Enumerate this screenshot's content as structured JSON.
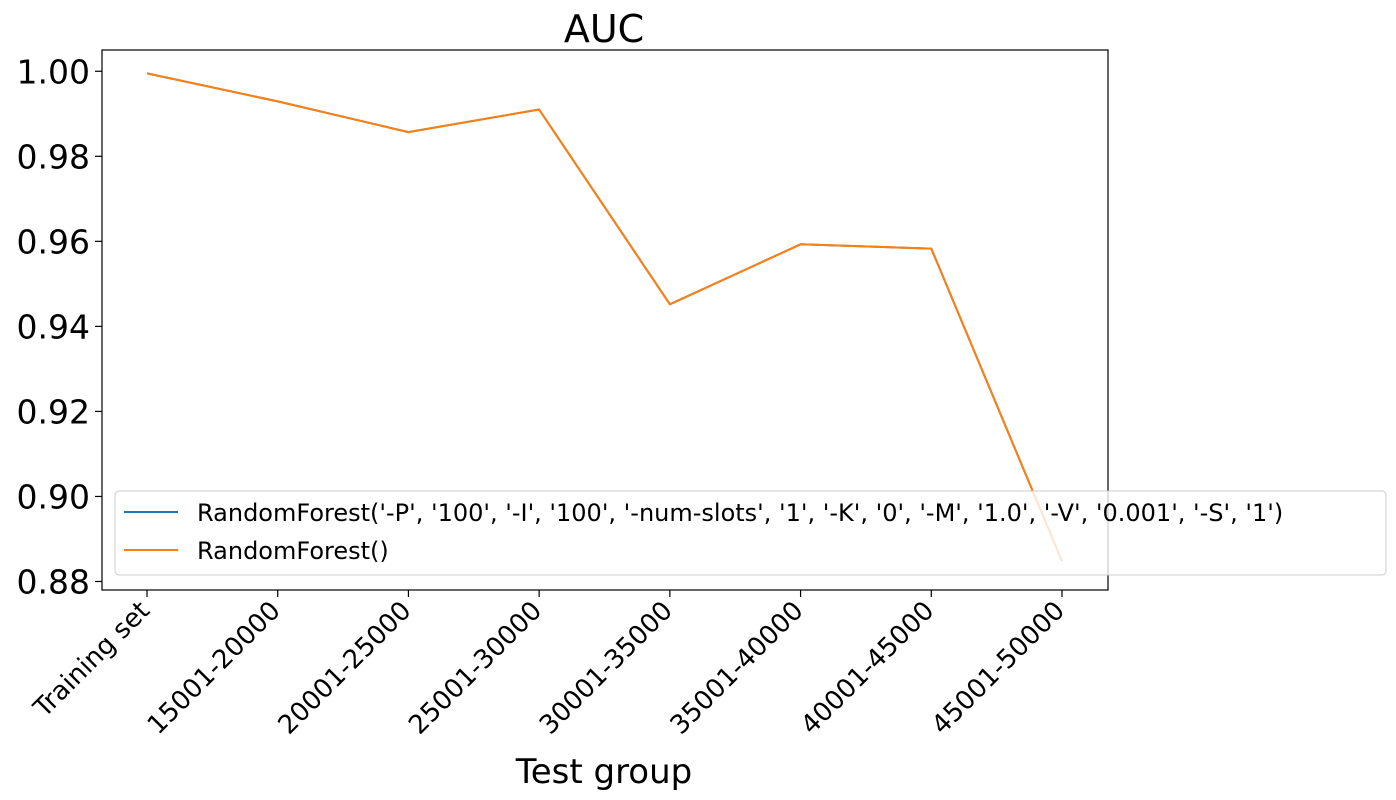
{
  "chart_data": {
    "type": "line",
    "title": "AUC",
    "xlabel": "Test group",
    "ylabel": "",
    "categories": [
      "Training set",
      "15001-20000",
      "20001-25000",
      "25001-30000",
      "30001-35000",
      "35001-40000",
      "40001-45000",
      "45001-50000"
    ],
    "ylim": [
      0.878,
      1.005
    ],
    "yticks": [
      "1.00",
      "0.98",
      "0.96",
      "0.94",
      "0.92",
      "0.90",
      "0.88"
    ],
    "ytick_values": [
      1.0,
      0.98,
      0.96,
      0.94,
      0.92,
      0.9,
      0.88
    ],
    "grid": false,
    "legend_position": "lower-left",
    "series": [
      {
        "name": "RandomForest('-P', '100', '-I', '100', '-num-slots', '1', '-K', '0', '-M', '1.0', '-V', '0.001', '-S', '1')",
        "color": "#1f77b4",
        "values": [
          0.9995,
          0.9929,
          0.9857,
          0.991,
          0.9452,
          0.9593,
          0.9583,
          0.8848
        ]
      },
      {
        "name": "RandomForest()",
        "color": "#ff7f0e",
        "values": [
          0.9995,
          0.9929,
          0.9857,
          0.991,
          0.9452,
          0.9593,
          0.9583,
          0.8848
        ]
      }
    ]
  }
}
